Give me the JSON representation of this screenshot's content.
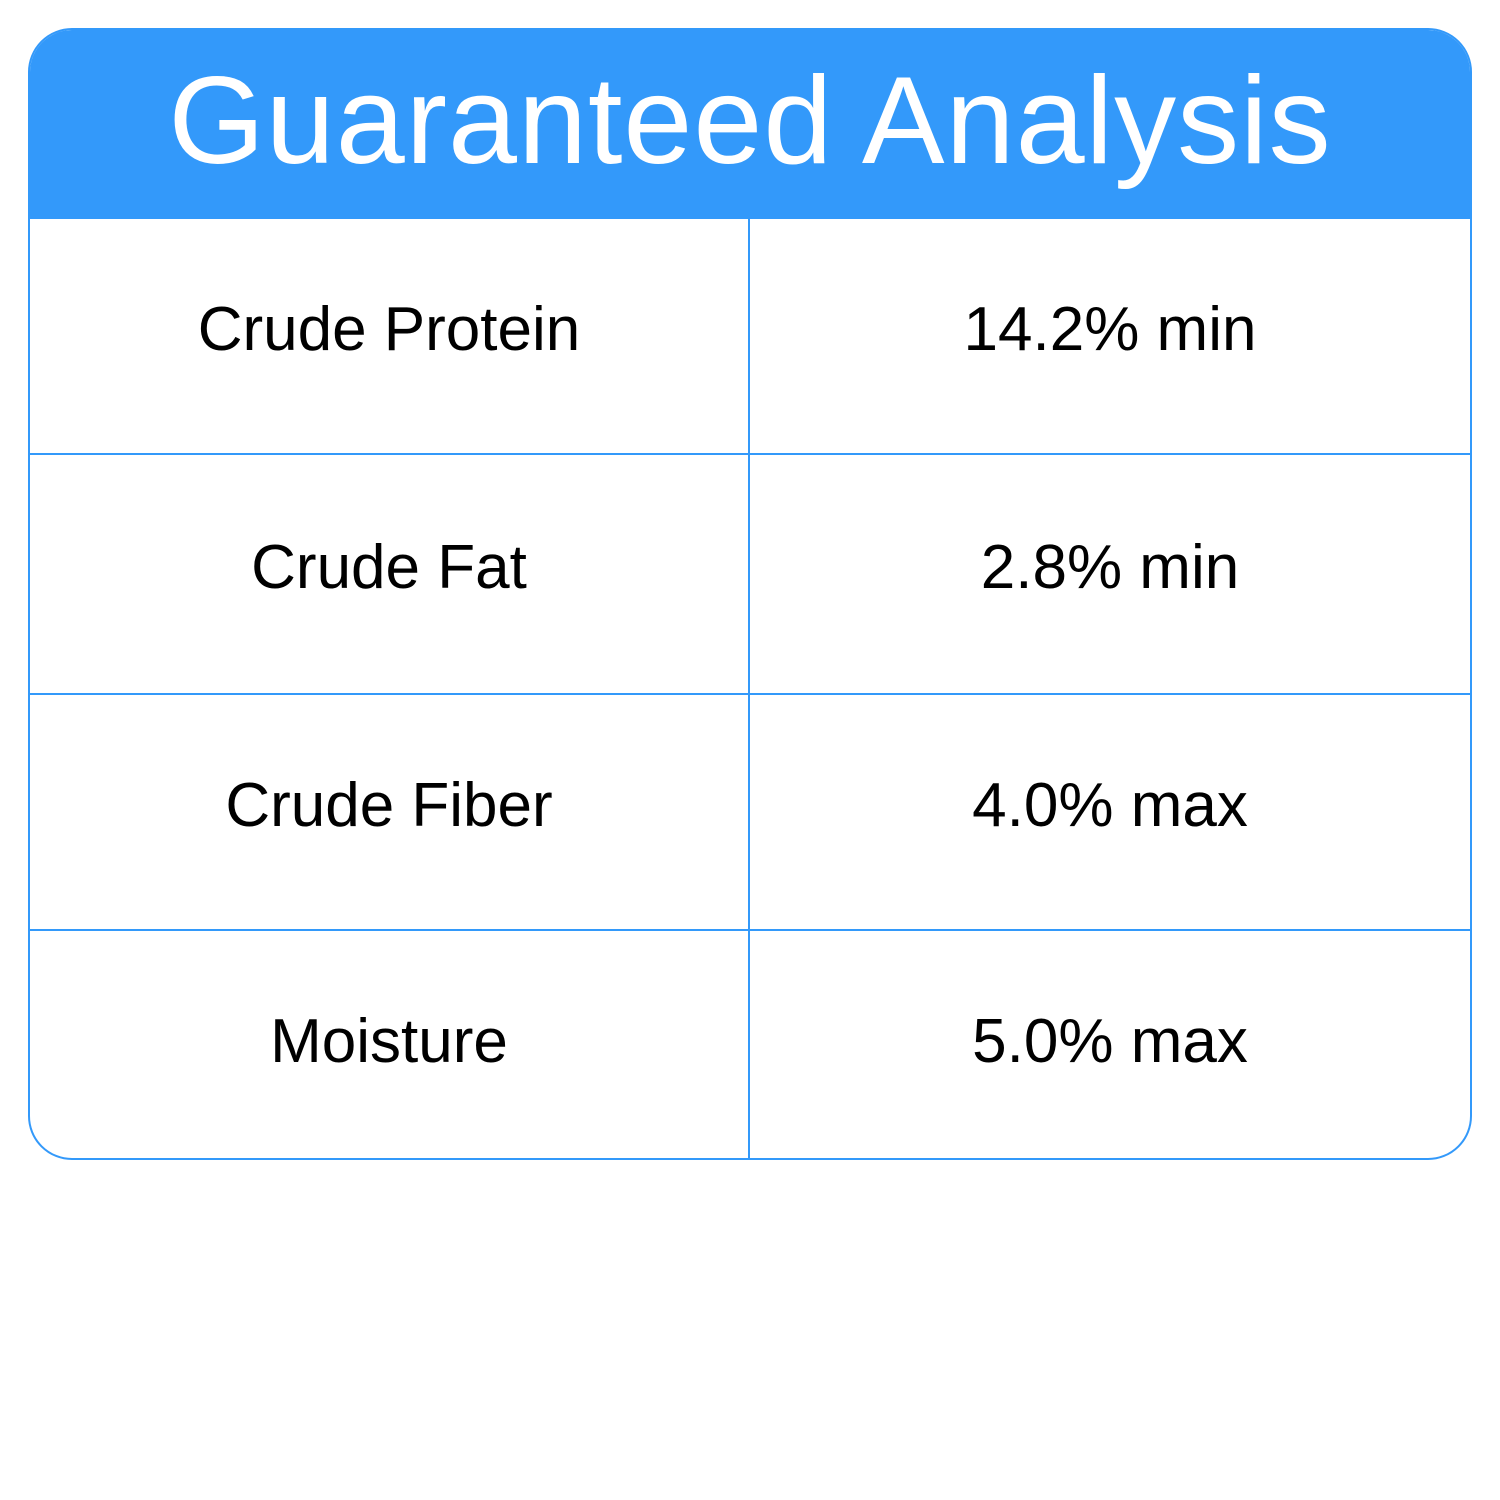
{
  "title": "Guaranteed Analysis",
  "accent_color": "#3399fa",
  "rows": [
    {
      "name": "Crude Protein",
      "value": "14.2% min"
    },
    {
      "name": "Crude Fat",
      "value": "2.8% min"
    },
    {
      "name": "Crude Fiber",
      "value": "4.0% max"
    },
    {
      "name": "Moisture",
      "value": "5.0% max"
    }
  ]
}
